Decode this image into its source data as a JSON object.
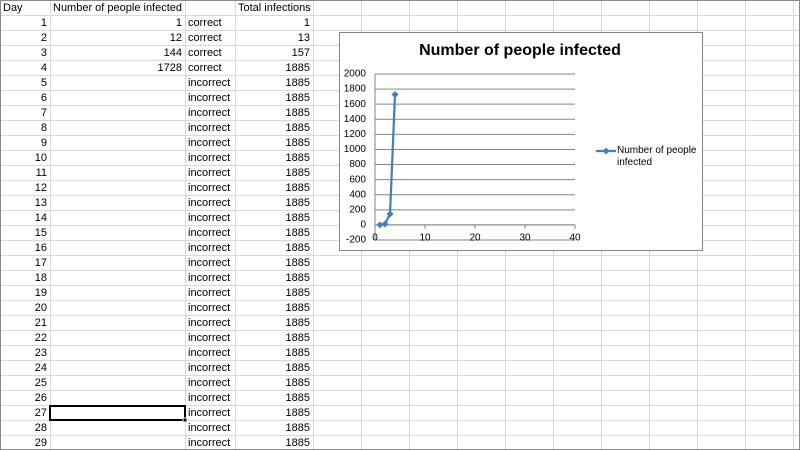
{
  "sheet": {
    "columns": {
      "day": "Day",
      "infected": "Number of people infected",
      "total": "Total infections"
    },
    "rows": [
      {
        "day": 1,
        "infected": 1,
        "check": "correct",
        "total": 1
      },
      {
        "day": 2,
        "infected": 12,
        "check": "correct",
        "total": 13
      },
      {
        "day": 3,
        "infected": 144,
        "check": "correct",
        "total": 157
      },
      {
        "day": 4,
        "infected": 1728,
        "check": "correct",
        "total": 1885
      },
      {
        "day": 5,
        "check": "incorrect",
        "total": 1885
      },
      {
        "day": 6,
        "check": "incorrect",
        "total": 1885
      },
      {
        "day": 7,
        "check": "incorrect",
        "total": 1885
      },
      {
        "day": 8,
        "check": "incorrect",
        "total": 1885
      },
      {
        "day": 9,
        "check": "incorrect",
        "total": 1885
      },
      {
        "day": 10,
        "check": "incorrect",
        "total": 1885
      },
      {
        "day": 11,
        "check": "incorrect",
        "total": 1885
      },
      {
        "day": 12,
        "check": "incorrect",
        "total": 1885
      },
      {
        "day": 13,
        "check": "incorrect",
        "total": 1885
      },
      {
        "day": 14,
        "check": "incorrect",
        "total": 1885
      },
      {
        "day": 15,
        "check": "incorrect",
        "total": 1885
      },
      {
        "day": 16,
        "check": "incorrect",
        "total": 1885
      },
      {
        "day": 17,
        "check": "incorrect",
        "total": 1885
      },
      {
        "day": 18,
        "check": "incorrect",
        "total": 1885
      },
      {
        "day": 19,
        "check": "incorrect",
        "total": 1885
      },
      {
        "day": 20,
        "check": "incorrect",
        "total": 1885
      },
      {
        "day": 21,
        "check": "incorrect",
        "total": 1885
      },
      {
        "day": 22,
        "check": "incorrect",
        "total": 1885
      },
      {
        "day": 23,
        "check": "incorrect",
        "total": 1885
      },
      {
        "day": 24,
        "check": "incorrect",
        "total": 1885
      },
      {
        "day": 25,
        "check": "incorrect",
        "total": 1885
      },
      {
        "day": 26,
        "check": "incorrect",
        "total": 1885
      },
      {
        "day": 27,
        "check": "incorrect",
        "total": 1885
      },
      {
        "day": 28,
        "check": "incorrect",
        "total": 1885
      },
      {
        "day": 29,
        "check": "incorrect",
        "total": 1885
      }
    ]
  },
  "chart_data": {
    "type": "scatter",
    "title": "Number of people infected",
    "x": [
      1,
      2,
      3,
      4
    ],
    "series": [
      {
        "name": "Number of people infected",
        "color": "#4a7ebb",
        "values": [
          1,
          12,
          144,
          1728
        ]
      }
    ],
    "xlim": [
      0,
      40
    ],
    "xticks": [
      0,
      10,
      20,
      30,
      40
    ],
    "ylim": [
      -200,
      2000
    ],
    "yticks": [
      -200,
      0,
      200,
      400,
      600,
      800,
      1000,
      1200,
      1400,
      1600,
      1800,
      2000
    ],
    "grid": true,
    "legend": "right"
  }
}
